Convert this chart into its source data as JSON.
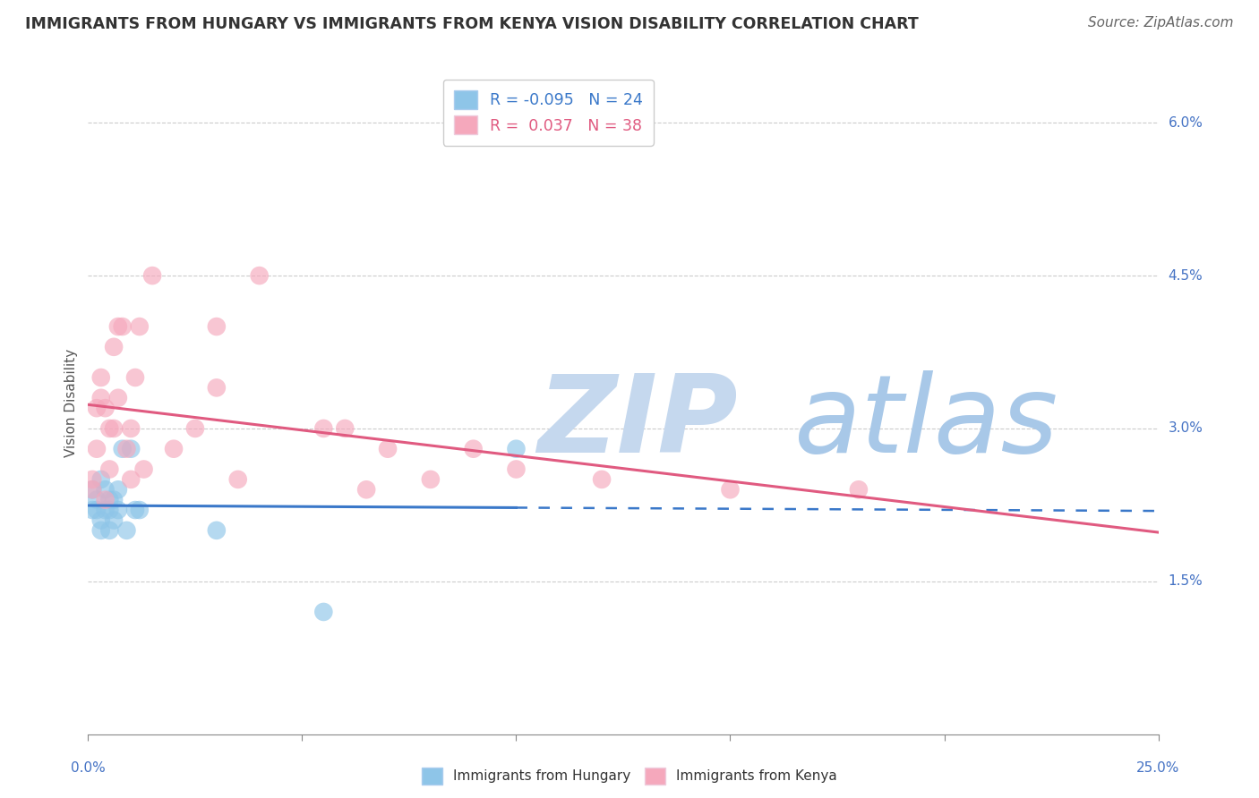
{
  "title": "IMMIGRANTS FROM HUNGARY VS IMMIGRANTS FROM KENYA VISION DISABILITY CORRELATION CHART",
  "source": "Source: ZipAtlas.com",
  "ylabel": "Vision Disability",
  "ylabel_right_ticks": [
    "1.5%",
    "3.0%",
    "4.5%",
    "6.0%"
  ],
  "ylabel_right_vals": [
    0.015,
    0.03,
    0.045,
    0.06
  ],
  "xlim": [
    0.0,
    0.25
  ],
  "ylim": [
    0.0,
    0.065
  ],
  "hungary_R": -0.095,
  "hungary_N": 24,
  "kenya_R": 0.037,
  "kenya_N": 38,
  "hungary_color": "#8EC5E8",
  "kenya_color": "#F5A8BC",
  "hungary_line_color": "#3A78C9",
  "kenya_line_color": "#E05A80",
  "watermark_zip": "ZIP",
  "watermark_atlas": "atlas",
  "watermark_color_zip": "#C5D8EE",
  "watermark_color_atlas": "#A8C8E8",
  "background_color": "#FFFFFF",
  "hungary_x": [
    0.001,
    0.001,
    0.002,
    0.002,
    0.003,
    0.003,
    0.003,
    0.004,
    0.004,
    0.005,
    0.005,
    0.005,
    0.006,
    0.006,
    0.007,
    0.007,
    0.008,
    0.009,
    0.01,
    0.011,
    0.012,
    0.03,
    0.055,
    0.1
  ],
  "hungary_y": [
    0.024,
    0.022,
    0.023,
    0.022,
    0.025,
    0.021,
    0.02,
    0.024,
    0.022,
    0.023,
    0.022,
    0.02,
    0.023,
    0.021,
    0.024,
    0.022,
    0.028,
    0.02,
    0.028,
    0.022,
    0.022,
    0.02,
    0.012,
    0.028
  ],
  "kenya_x": [
    0.001,
    0.001,
    0.002,
    0.002,
    0.003,
    0.003,
    0.004,
    0.004,
    0.005,
    0.005,
    0.006,
    0.006,
    0.007,
    0.007,
    0.008,
    0.009,
    0.01,
    0.01,
    0.011,
    0.012,
    0.013,
    0.015,
    0.02,
    0.025,
    0.03,
    0.03,
    0.035,
    0.04,
    0.055,
    0.06,
    0.065,
    0.07,
    0.08,
    0.09,
    0.1,
    0.12,
    0.15,
    0.18
  ],
  "kenya_y": [
    0.025,
    0.024,
    0.032,
    0.028,
    0.035,
    0.033,
    0.032,
    0.023,
    0.03,
    0.026,
    0.038,
    0.03,
    0.04,
    0.033,
    0.04,
    0.028,
    0.03,
    0.025,
    0.035,
    0.04,
    0.026,
    0.045,
    0.028,
    0.03,
    0.04,
    0.034,
    0.025,
    0.045,
    0.03,
    0.03,
    0.024,
    0.028,
    0.025,
    0.028,
    0.026,
    0.025,
    0.024,
    0.024
  ]
}
